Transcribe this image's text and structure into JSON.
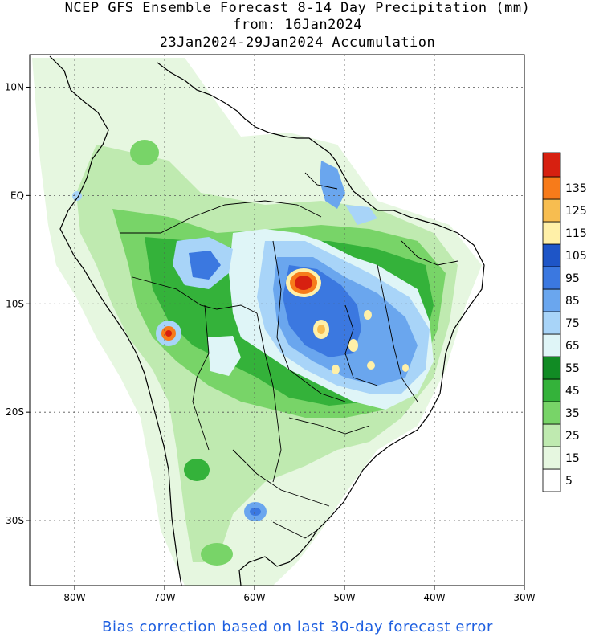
{
  "title": {
    "line1": "NCEP GFS Ensemble Forecast 8-14 Day Precipitation (mm)",
    "line2": "from: 16Jan2024",
    "line3": "23Jan2024-29Jan2024 Accumulation"
  },
  "map": {
    "region": "South America",
    "lon_range": [
      -85,
      -30
    ],
    "lat_range": [
      -36,
      13
    ],
    "lat_ticks": [
      {
        "value": 10,
        "label": "10N"
      },
      {
        "value": 0,
        "label": "EQ"
      },
      {
        "value": -10,
        "label": "10S"
      },
      {
        "value": -20,
        "label": "20S"
      },
      {
        "value": -30,
        "label": "30S"
      }
    ],
    "lon_ticks": [
      {
        "value": -80,
        "label": "80W"
      },
      {
        "value": -70,
        "label": "70W"
      },
      {
        "value": -60,
        "label": "60W"
      },
      {
        "value": -50,
        "label": "50W"
      },
      {
        "value": -40,
        "label": "40W"
      },
      {
        "value": -30,
        "label": "30W"
      }
    ],
    "grid": "dotted"
  },
  "legend": {
    "placement": "right",
    "bins": [
      {
        "label": "5",
        "color": "#ffffff"
      },
      {
        "label": "15",
        "color": "#e6f7e0"
      },
      {
        "label": "25",
        "color": "#bfeab0"
      },
      {
        "label": "35",
        "color": "#78d468"
      },
      {
        "label": "45",
        "color": "#34b23a"
      },
      {
        "label": "55",
        "color": "#118b24"
      },
      {
        "label": "65",
        "color": "#dff5f7"
      },
      {
        "label": "75",
        "color": "#a8d4f8"
      },
      {
        "label": "85",
        "color": "#6aa6ee"
      },
      {
        "label": "95",
        "color": "#3b78e0"
      },
      {
        "label": "105",
        "color": "#1e55c7"
      },
      {
        "label": "115",
        "color": "#fff0a8"
      },
      {
        "label": "125",
        "color": "#f7bd50"
      },
      {
        "label": "135",
        "color": "#f77b1a"
      },
      {
        "label": "",
        "color": "#d72010"
      }
    ]
  },
  "footer": "Bias correction based on last 30-day forecast error"
}
